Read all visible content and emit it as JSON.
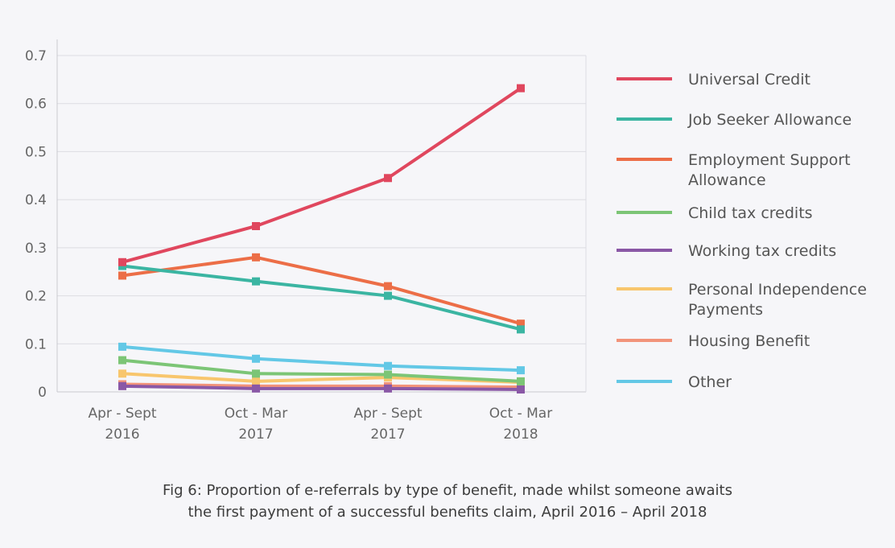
{
  "chart_data": {
    "type": "line",
    "title": "",
    "xlabel": "",
    "ylabel": "",
    "ylim": [
      0,
      0.7
    ],
    "yticks": [
      "0",
      "0.1",
      "0.2",
      "0.3",
      "0.4",
      "0.5",
      "0.6",
      "0.7"
    ],
    "grid": true,
    "legend_position": "right",
    "categories": [
      [
        "Apr - Sept",
        "2016"
      ],
      [
        "Oct - Mar",
        "2017"
      ],
      [
        "Apr - Sept",
        "2017"
      ],
      [
        "Oct - Mar",
        "2018"
      ]
    ],
    "series": [
      {
        "name": [
          "Universal Credit"
        ],
        "color": "#e0475e",
        "values": [
          0.27,
          0.345,
          0.445,
          0.632
        ]
      },
      {
        "name": [
          "Job Seeker Allowance"
        ],
        "color": "#3bb5a2",
        "values": [
          0.262,
          0.23,
          0.2,
          0.13
        ]
      },
      {
        "name": [
          "Employment Support",
          "Allowance"
        ],
        "color": "#ec6e47",
        "values": [
          0.242,
          0.28,
          0.22,
          0.142
        ]
      },
      {
        "name": [
          "Child tax credits"
        ],
        "color": "#7cc576",
        "values": [
          0.066,
          0.038,
          0.036,
          0.022
        ]
      },
      {
        "name": [
          "Working tax credits"
        ],
        "color": "#8a58a6",
        "values": [
          0.012,
          0.007,
          0.007,
          0.005
        ]
      },
      {
        "name": [
          "Personal Independence",
          "Payments"
        ],
        "color": "#f8c66d",
        "values": [
          0.038,
          0.022,
          0.03,
          0.02
        ]
      },
      {
        "name": [
          "Housing Benefit"
        ],
        "color": "#f2937a",
        "values": [
          0.016,
          0.012,
          0.012,
          0.01
        ]
      },
      {
        "name": [
          "Other"
        ],
        "color": "#63c8e6",
        "values": [
          0.094,
          0.069,
          0.054,
          0.045
        ]
      }
    ]
  },
  "caption": {
    "line1": "Fig 6: Proportion of e-referrals by type of benefit, made whilst someone awaits",
    "line2": "the first payment of a successful benefits claim, April 2016 – April 2018"
  }
}
